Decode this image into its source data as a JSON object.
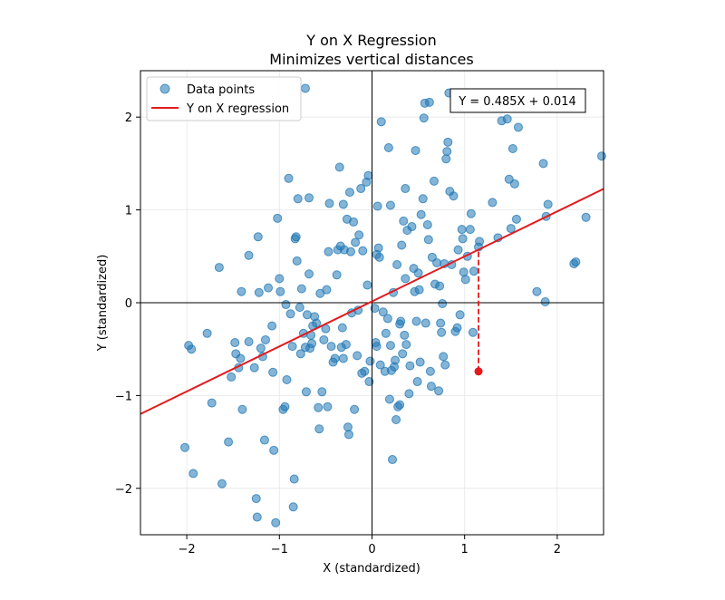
{
  "chart_data": {
    "type": "scatter",
    "title": "Y on X Regression",
    "subtitle": "Minimizes vertical distances",
    "xlabel": "X (standardized)",
    "ylabel": "Y (standardized)",
    "xlim": [
      -2.5,
      2.5
    ],
    "ylim": [
      -2.5,
      2.5
    ],
    "xticks": [
      -2,
      -1,
      0,
      1,
      2
    ],
    "yticks": [
      -2,
      -1,
      0,
      1,
      2
    ],
    "xtick_labels": [
      "−2",
      "−1",
      "0",
      "1",
      "2"
    ],
    "ytick_labels": [
      "−2",
      "−1",
      "0",
      "1",
      "2"
    ],
    "grid": true,
    "legend_placement": "top-left",
    "annotation": "Y = 0.485X + 0.014",
    "regression": {
      "name": "Y on X regression",
      "slope": 0.485,
      "intercept": 0.014,
      "color": "#e31a1c"
    },
    "highlight": {
      "x": 1.15,
      "y": -0.74,
      "color": "#e31a1c"
    },
    "series": [
      {
        "name": "Data points",
        "color": "#1f77b4",
        "points": [
          [
            -2.02,
            -1.56
          ],
          [
            -1.93,
            -1.84
          ],
          [
            -1.98,
            -0.46
          ],
          [
            -1.95,
            -0.5
          ],
          [
            -1.78,
            -0.33
          ],
          [
            -1.73,
            -1.08
          ],
          [
            -1.65,
            0.38
          ],
          [
            -1.62,
            -1.95
          ],
          [
            -1.55,
            -1.5
          ],
          [
            -1.52,
            -0.8
          ],
          [
            -1.48,
            -0.43
          ],
          [
            -1.47,
            -0.55
          ],
          [
            -1.44,
            -0.7
          ],
          [
            -1.42,
            -0.6
          ],
          [
            -1.41,
            0.12
          ],
          [
            -1.4,
            -1.15
          ],
          [
            -1.33,
            0.51
          ],
          [
            -1.33,
            -0.42
          ],
          [
            -1.27,
            -0.7
          ],
          [
            -1.25,
            -2.11
          ],
          [
            -1.24,
            -2.31
          ],
          [
            -1.23,
            0.71
          ],
          [
            -1.22,
            0.11
          ],
          [
            -1.2,
            -0.49
          ],
          [
            -1.18,
            -0.58
          ],
          [
            -1.16,
            -1.48
          ],
          [
            -1.15,
            -0.4
          ],
          [
            -1.12,
            0.16
          ],
          [
            -1.08,
            -0.25
          ],
          [
            -1.07,
            -0.75
          ],
          [
            -1.06,
            -1.59
          ],
          [
            -1.04,
            -2.37
          ],
          [
            -1.02,
            0.91
          ],
          [
            -1.0,
            0.26
          ],
          [
            -0.99,
            0.12
          ],
          [
            -0.96,
            -1.15
          ],
          [
            -0.94,
            -1.12
          ],
          [
            -0.92,
            -0.83
          ],
          [
            -0.93,
            -0.02
          ],
          [
            -0.9,
            1.34
          ],
          [
            -0.88,
            -0.12
          ],
          [
            -0.86,
            -0.47
          ],
          [
            -0.85,
            -2.2
          ],
          [
            -0.84,
            -1.9
          ],
          [
            -0.83,
            0.69
          ],
          [
            -0.82,
            0.71
          ],
          [
            -0.81,
            0.45
          ],
          [
            -0.8,
            1.12
          ],
          [
            -0.78,
            -0.05
          ],
          [
            -0.77,
            -0.55
          ],
          [
            -0.76,
            0.15
          ],
          [
            -0.74,
            -0.33
          ],
          [
            -0.72,
            -0.48
          ],
          [
            -0.71,
            -0.96
          ],
          [
            -0.7,
            -0.13
          ],
          [
            -0.68,
            1.13
          ],
          [
            -0.68,
            0.31
          ],
          [
            -0.67,
            -0.49
          ],
          [
            -0.66,
            -0.35
          ],
          [
            -0.65,
            -0.44
          ],
          [
            -0.64,
            -0.25
          ],
          [
            -0.62,
            -0.15
          ],
          [
            -0.6,
            -0.22
          ],
          [
            -0.58,
            -1.13
          ],
          [
            -0.57,
            -1.36
          ],
          [
            -0.56,
            0.1
          ],
          [
            -0.54,
            -0.96
          ],
          [
            -0.52,
            -0.4
          ],
          [
            -0.5,
            -0.28
          ],
          [
            -0.49,
            0.14
          ],
          [
            -0.48,
            -1.12
          ],
          [
            -0.47,
            0.55
          ],
          [
            -0.46,
            1.07
          ],
          [
            -0.44,
            -0.47
          ],
          [
            -0.42,
            -0.64
          ],
          [
            -0.4,
            -0.6
          ],
          [
            -0.38,
            0.3
          ],
          [
            -0.37,
            0.57
          ],
          [
            -0.35,
            1.46
          ],
          [
            -0.34,
            0.61
          ],
          [
            -0.33,
            -0.48
          ],
          [
            -0.32,
            -0.27
          ],
          [
            -0.31,
            -0.6
          ],
          [
            -0.3,
            0.57
          ],
          [
            -0.28,
            -0.45
          ],
          [
            -0.27,
            0.9
          ],
          [
            -0.26,
            -1.34
          ],
          [
            -0.25,
            -1.42
          ],
          [
            -0.24,
            1.19
          ],
          [
            -0.23,
            0.55
          ],
          [
            -0.22,
            -0.11
          ],
          [
            -0.2,
            0.87
          ],
          [
            -0.19,
            -1.15
          ],
          [
            -0.18,
            0.65
          ],
          [
            -0.16,
            -0.57
          ],
          [
            -0.14,
            0.73
          ],
          [
            -0.12,
            1.23
          ],
          [
            -0.11,
            -0.76
          ],
          [
            -0.1,
            0.56
          ],
          [
            -0.08,
            -0.74
          ],
          [
            -0.06,
            1.3
          ],
          [
            -0.05,
            0.19
          ],
          [
            -0.04,
            1.37
          ],
          [
            -0.03,
            -0.85
          ],
          [
            -0.02,
            -0.63
          ],
          [
            0.03,
            -0.06
          ],
          [
            0.04,
            -0.43
          ],
          [
            0.05,
            -0.47
          ],
          [
            0.06,
            1.04
          ],
          [
            0.07,
            0.59
          ],
          [
            0.08,
            0.49
          ],
          [
            0.09,
            -0.67
          ],
          [
            0.1,
            1.95
          ],
          [
            0.12,
            -0.1
          ],
          [
            0.14,
            -0.74
          ],
          [
            0.15,
            -0.33
          ],
          [
            0.17,
            -0.17
          ],
          [
            0.18,
            1.67
          ],
          [
            0.19,
            -1.04
          ],
          [
            0.2,
            -0.46
          ],
          [
            0.21,
            -0.73
          ],
          [
            0.22,
            -1.69
          ],
          [
            0.23,
            0.11
          ],
          [
            0.24,
            -0.69
          ],
          [
            0.25,
            -0.62
          ],
          [
            0.26,
            -1.26
          ],
          [
            0.27,
            0.41
          ],
          [
            0.28,
            -1.12
          ],
          [
            0.3,
            -1.1
          ],
          [
            0.3,
            -0.23
          ],
          [
            0.31,
            -0.2
          ],
          [
            0.32,
            0.62
          ],
          [
            0.33,
            -0.55
          ],
          [
            0.34,
            0.88
          ],
          [
            0.35,
            -0.35
          ],
          [
            0.36,
            0.26
          ],
          [
            0.37,
            -0.45
          ],
          [
            0.38,
            0.78
          ],
          [
            0.4,
            -0.98
          ],
          [
            0.41,
            -0.68
          ],
          [
            0.43,
            0.82
          ],
          [
            0.45,
            0.37
          ],
          [
            0.46,
            0.12
          ],
          [
            0.47,
            1.64
          ],
          [
            0.48,
            -0.2
          ],
          [
            0.49,
            -0.85
          ],
          [
            0.5,
            0.32
          ],
          [
            0.51,
            0.14
          ],
          [
            0.52,
            -0.64
          ],
          [
            0.53,
            0.95
          ],
          [
            0.55,
            1.12
          ],
          [
            0.56,
            1.99
          ],
          [
            0.57,
            2.15
          ],
          [
            0.58,
            -0.22
          ],
          [
            0.6,
            0.84
          ],
          [
            0.61,
            0.68
          ],
          [
            0.62,
            2.16
          ],
          [
            0.63,
            -0.74
          ],
          [
            0.64,
            -0.9
          ],
          [
            0.65,
            0.49
          ],
          [
            0.67,
            1.31
          ],
          [
            0.68,
            0.2
          ],
          [
            0.7,
            0.43
          ],
          [
            0.72,
            -0.95
          ],
          [
            0.73,
            0.18
          ],
          [
            0.74,
            -0.22
          ],
          [
            0.75,
            -0.32
          ],
          [
            0.76,
            -0.01
          ],
          [
            0.77,
            -0.58
          ],
          [
            0.78,
            0.42
          ],
          [
            0.79,
            -0.67
          ],
          [
            0.8,
            1.55
          ],
          [
            0.81,
            1.63
          ],
          [
            0.82,
            1.73
          ],
          [
            0.83,
            2.26
          ],
          [
            0.84,
            1.2
          ],
          [
            0.86,
            0.41
          ],
          [
            0.88,
            1.15
          ],
          [
            0.9,
            -0.31
          ],
          [
            0.92,
            -0.27
          ],
          [
            0.93,
            0.57
          ],
          [
            0.95,
            -0.13
          ],
          [
            0.97,
            0.79
          ],
          [
            0.98,
            0.69
          ],
          [
            0.99,
            0.33
          ],
          [
            1.01,
            0.25
          ],
          [
            1.03,
            0.5
          ],
          [
            1.06,
            0.79
          ],
          [
            1.07,
            0.96
          ],
          [
            1.09,
            -0.32
          ],
          [
            1.1,
            0.34
          ],
          [
            1.15,
            0.6
          ],
          [
            1.16,
            0.66
          ],
          [
            1.3,
            1.08
          ],
          [
            1.36,
            0.7
          ],
          [
            1.4,
            1.96
          ],
          [
            1.46,
            1.98
          ],
          [
            1.48,
            1.33
          ],
          [
            1.5,
            0.8
          ],
          [
            1.52,
            1.66
          ],
          [
            1.54,
            1.28
          ],
          [
            1.56,
            0.9
          ],
          [
            1.58,
            1.89
          ],
          [
            1.78,
            0.12
          ],
          [
            1.85,
            1.5
          ],
          [
            1.87,
            0.01
          ],
          [
            1.88,
            0.93
          ],
          [
            1.9,
            1.06
          ],
          [
            2.18,
            0.42
          ],
          [
            2.2,
            0.44
          ],
          [
            2.31,
            0.92
          ],
          [
            2.48,
            1.58
          ],
          [
            -0.72,
            2.31
          ],
          [
            -0.31,
            1.06
          ],
          [
            0.2,
            1.05
          ],
          [
            -0.15,
            -0.08
          ],
          [
            0.05,
            0.52
          ],
          [
            0.36,
            1.23
          ]
        ]
      }
    ]
  }
}
